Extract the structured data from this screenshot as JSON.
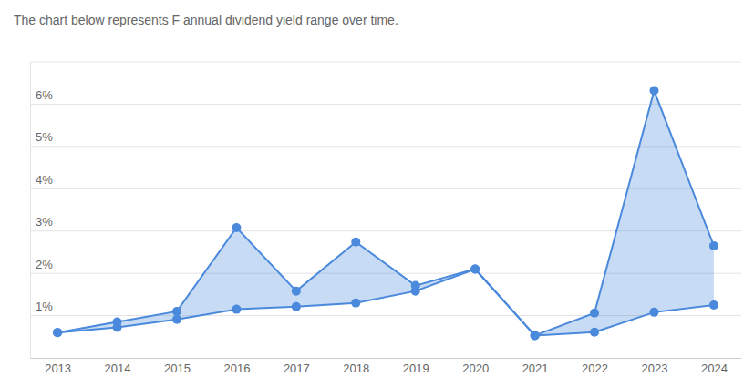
{
  "chart_data": {
    "type": "area",
    "title": "The chart below represents F annual dividend yield range over time.",
    "categories": [
      "2013",
      "2014",
      "2015",
      "2016",
      "2017",
      "2018",
      "2019",
      "2020",
      "2021",
      "2022",
      "2023",
      "2024"
    ],
    "series": [
      {
        "color": "#4a89dc",
        "values": [
          0.6,
          0.85,
          1.1,
          3.08,
          1.58,
          2.74,
          1.71,
          2.1,
          0.53,
          1.06,
          6.32,
          2.65
        ]
      },
      {
        "color": "#4a89dc",
        "values": [
          0.6,
          0.72,
          0.91,
          1.15,
          1.21,
          1.3,
          1.58,
          2.1,
          0.53,
          0.61,
          1.08,
          1.25
        ]
      }
    ],
    "ylim": [
      0,
      7
    ],
    "yticks": [
      {
        "value": 1,
        "label": "1%"
      },
      {
        "value": 2,
        "label": "2%"
      },
      {
        "value": 3,
        "label": "3%"
      },
      {
        "value": 4,
        "label": "4%"
      },
      {
        "value": 5,
        "label": "5%"
      },
      {
        "value": 6,
        "label": "6%"
      }
    ],
    "grid": true,
    "marker": "circle"
  }
}
